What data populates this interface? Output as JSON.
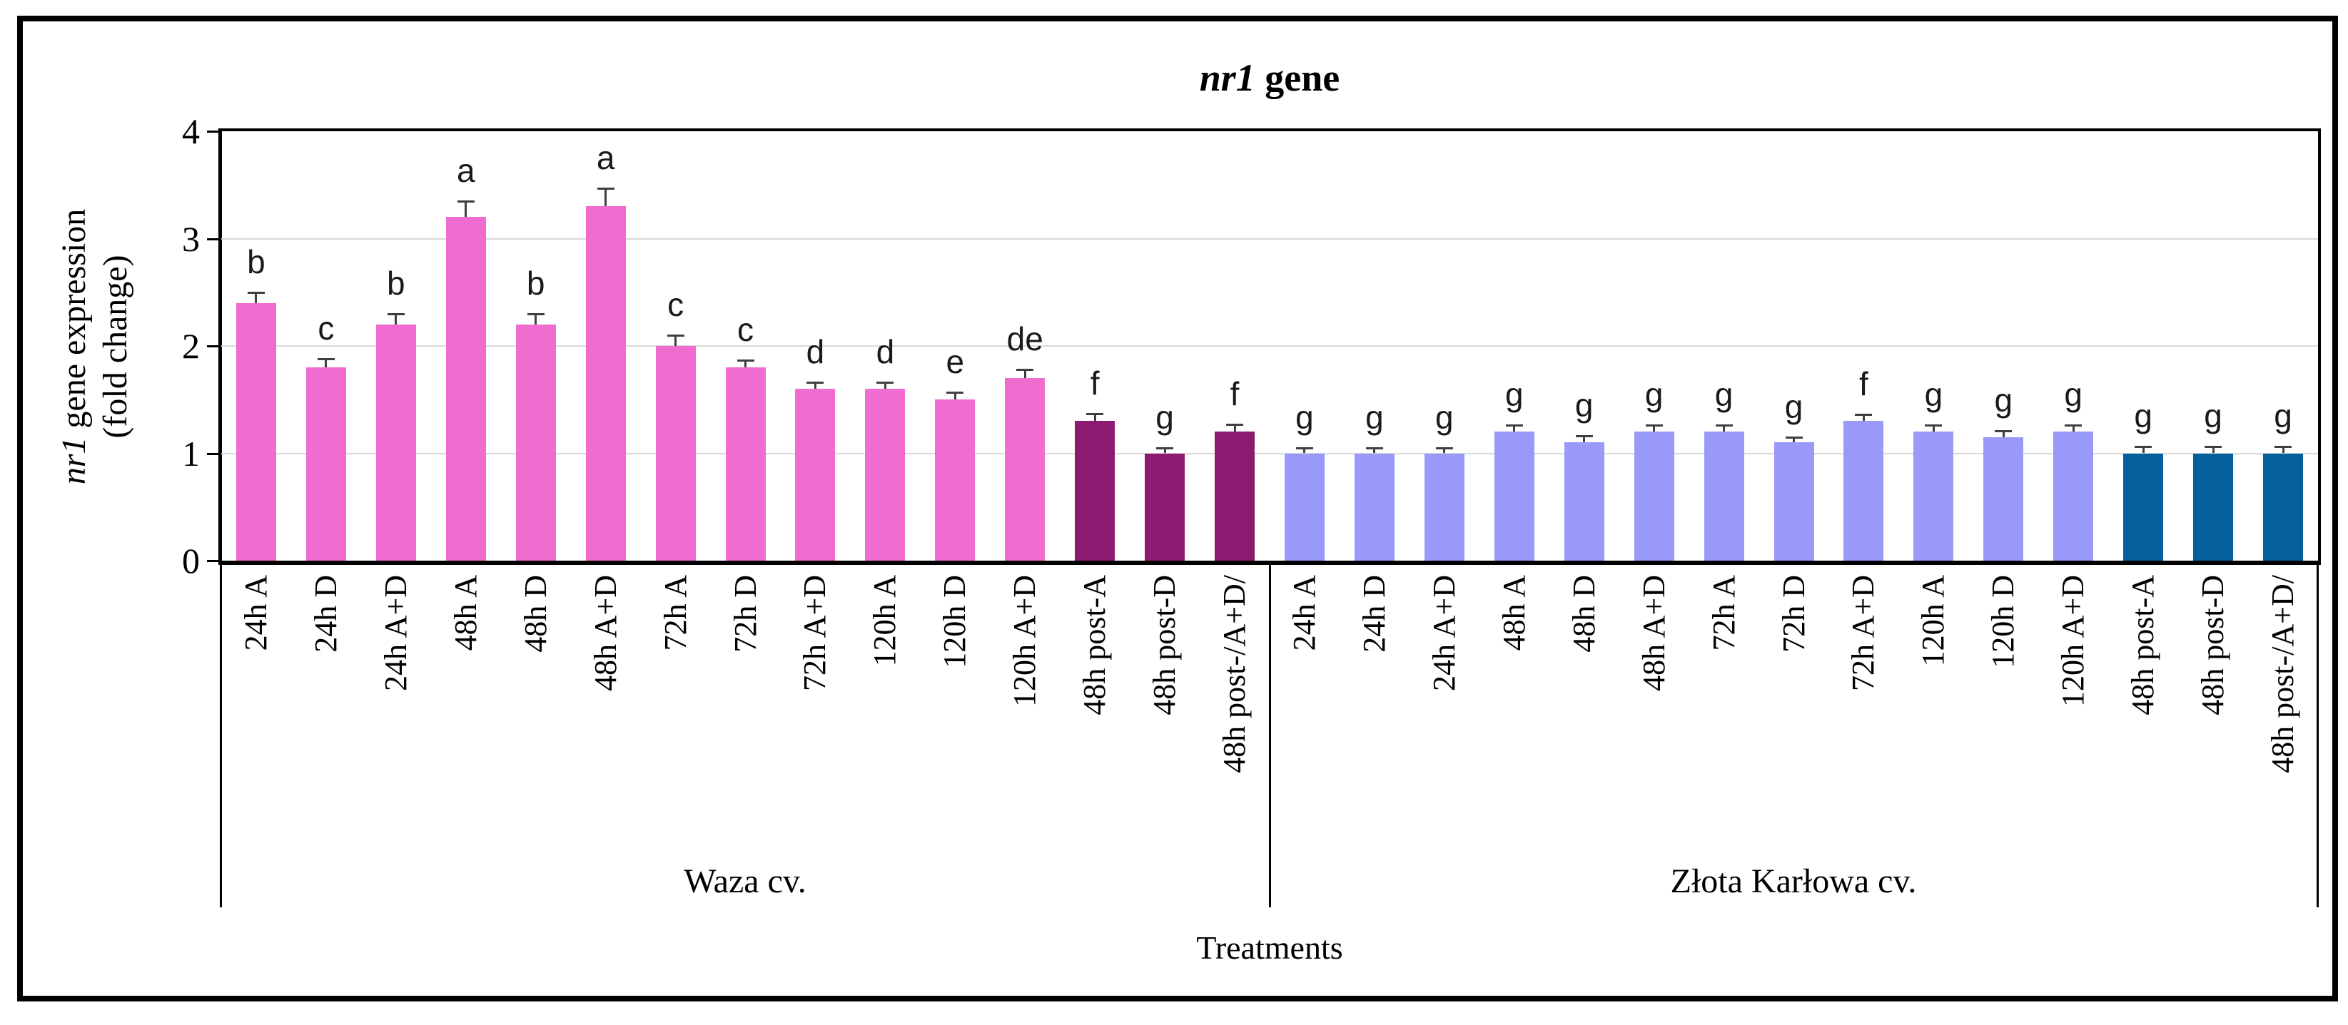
{
  "chart_data": {
    "type": "bar",
    "title": "nr1 gene",
    "title_parts": {
      "italic": "nr1",
      "rest": " gene"
    },
    "ylabel": "nr1 gene expression (fold change)",
    "ylabel_parts": {
      "line1_italic": "nr1",
      "line1_rest": " gene expression",
      "line2": "(fold change)"
    },
    "xlabel": "Treatments",
    "ylim": [
      0,
      4
    ],
    "yticks": [
      0,
      1,
      2,
      3,
      4
    ],
    "grid": "horizontal gridlines at 1, 2 and 3",
    "legend": "none",
    "bar_unit": "fold change",
    "groups": [
      {
        "name": "Waza cv.",
        "colors": {
          "main": "#F06CD0",
          "post": "#8C1A70"
        },
        "bars": [
          {
            "label": "24h A",
            "value": 2.4,
            "error": 0.1,
            "letter": "b",
            "role": "main"
          },
          {
            "label": "24h D",
            "value": 1.8,
            "error": 0.08,
            "letter": "c",
            "role": "main"
          },
          {
            "label": "24h A+D",
            "value": 2.2,
            "error": 0.1,
            "letter": "b",
            "role": "main"
          },
          {
            "label": "48h A",
            "value": 3.2,
            "error": 0.15,
            "letter": "a",
            "role": "main"
          },
          {
            "label": "48h D",
            "value": 2.2,
            "error": 0.1,
            "letter": "b",
            "role": "main"
          },
          {
            "label": "48h A+D",
            "value": 3.3,
            "error": 0.17,
            "letter": "a",
            "role": "main"
          },
          {
            "label": "72h A",
            "value": 2.0,
            "error": 0.1,
            "letter": "c",
            "role": "main"
          },
          {
            "label": "72h D",
            "value": 1.8,
            "error": 0.07,
            "letter": "c",
            "role": "main"
          },
          {
            "label": "72h A+D",
            "value": 1.6,
            "error": 0.06,
            "letter": "d",
            "role": "main"
          },
          {
            "label": "120h A",
            "value": 1.6,
            "error": 0.06,
            "letter": "d",
            "role": "main"
          },
          {
            "label": "120h D",
            "value": 1.5,
            "error": 0.07,
            "letter": "e",
            "role": "main"
          },
          {
            "label": "120h A+D",
            "value": 1.7,
            "error": 0.08,
            "letter": "de",
            "role": "main"
          },
          {
            "label": "48h post-A",
            "value": 1.3,
            "error": 0.07,
            "letter": "f",
            "role": "post"
          },
          {
            "label": "48h post-D",
            "value": 1.0,
            "error": 0.05,
            "letter": "g",
            "role": "post"
          },
          {
            "label": "48h post-/A+D/",
            "value": 1.2,
            "error": 0.07,
            "letter": "f",
            "role": "post"
          }
        ]
      },
      {
        "name": "Złota Karłowa cv.",
        "colors": {
          "main": "#9999FA",
          "post": "#055F9C"
        },
        "bars": [
          {
            "label": "24h A",
            "value": 1.0,
            "error": 0.05,
            "letter": "g",
            "role": "main"
          },
          {
            "label": "24h D",
            "value": 1.0,
            "error": 0.05,
            "letter": "g",
            "role": "main"
          },
          {
            "label": "24h A+D",
            "value": 1.0,
            "error": 0.05,
            "letter": "g",
            "role": "main"
          },
          {
            "label": "48h A",
            "value": 1.2,
            "error": 0.06,
            "letter": "g",
            "role": "main"
          },
          {
            "label": "48h D",
            "value": 1.1,
            "error": 0.06,
            "letter": "g",
            "role": "main"
          },
          {
            "label": "48h A+D",
            "value": 1.2,
            "error": 0.06,
            "letter": "g",
            "role": "main"
          },
          {
            "label": "72h A",
            "value": 1.2,
            "error": 0.06,
            "letter": "g",
            "role": "main"
          },
          {
            "label": "72h D",
            "value": 1.1,
            "error": 0.05,
            "letter": "g",
            "role": "main"
          },
          {
            "label": "72h A+D",
            "value": 1.3,
            "error": 0.06,
            "letter": "f",
            "role": "main"
          },
          {
            "label": "120h A",
            "value": 1.2,
            "error": 0.06,
            "letter": "g",
            "role": "main"
          },
          {
            "label": "120h D",
            "value": 1.15,
            "error": 0.06,
            "letter": "g",
            "role": "main"
          },
          {
            "label": "120h A+D",
            "value": 1.2,
            "error": 0.06,
            "letter": "g",
            "role": "main"
          },
          {
            "label": "48h post-A",
            "value": 1.0,
            "error": 0.06,
            "letter": "g",
            "role": "post"
          },
          {
            "label": "48h post-D",
            "value": 1.0,
            "error": 0.06,
            "letter": "g",
            "role": "post"
          },
          {
            "label": "48h post-/A+D/",
            "value": 1.0,
            "error": 0.06,
            "letter": "g",
            "role": "post"
          }
        ]
      }
    ],
    "colors": {
      "error_bar": "#3F3F3F",
      "gridline": "#D9D9D9",
      "axis": "#000000",
      "background": "#FFFFFF"
    }
  }
}
